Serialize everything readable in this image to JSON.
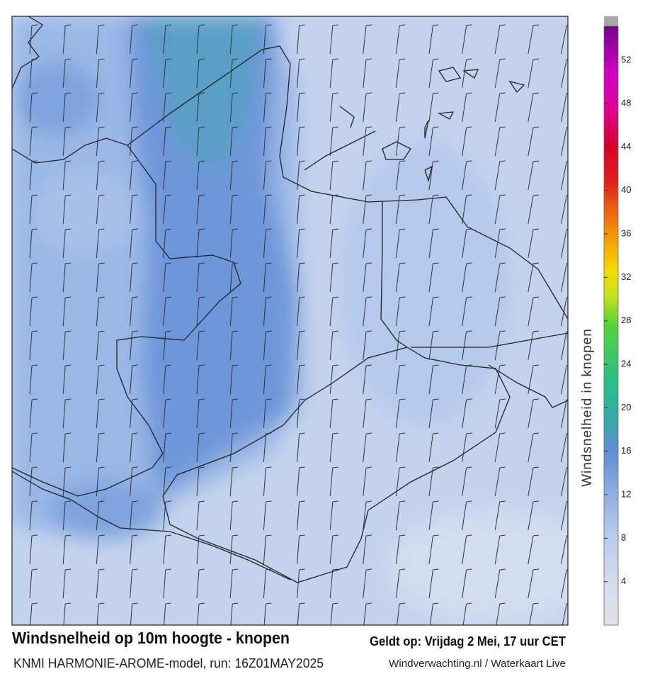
{
  "map": {
    "title": "Windsnelheid op 10m hoogte - knopen",
    "subtitle": "KNMI HARMONIE-AROME-model, run: 16Z01MAY2025",
    "valid_time": "Geldt op: Vrijdag 2 Mei, 17 uur CET",
    "source": "Windverwachting.nl / Waterkaart Live",
    "colorbar": {
      "label": "Windsnelheid in knopen",
      "range": [
        0,
        56
      ],
      "ticks": [
        4,
        8,
        12,
        16,
        20,
        24,
        28,
        32,
        36,
        40,
        44,
        48,
        52
      ]
    }
  }
}
